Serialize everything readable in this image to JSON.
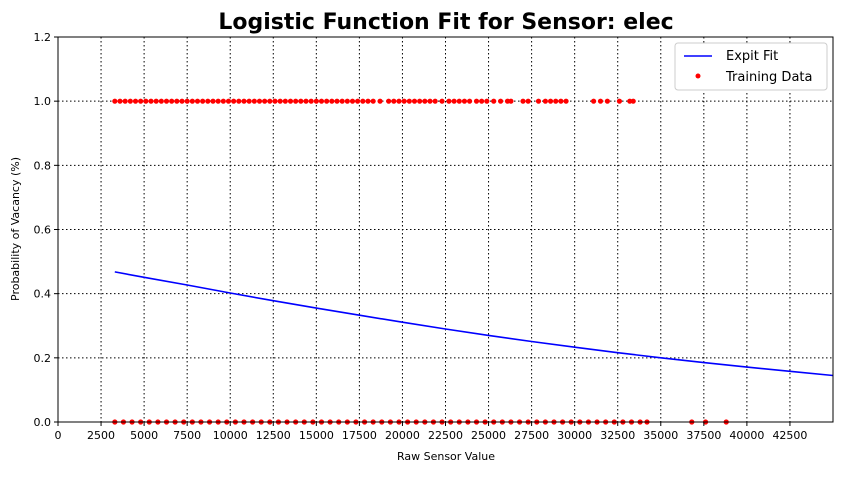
{
  "chart_data": {
    "type": "scatter",
    "title": "Logistic Function Fit for Sensor: elec",
    "xlabel": "Raw Sensor Value",
    "ylabel": "Probability of Vacancy (%)",
    "xlim": [
      0,
      45000
    ],
    "ylim": [
      0,
      1.2
    ],
    "xticks": [
      0,
      2500,
      5000,
      7500,
      10000,
      12500,
      15000,
      17500,
      20000,
      22500,
      25000,
      27500,
      30000,
      32500,
      35000,
      37500,
      40000,
      42500
    ],
    "yticks": [
      0.0,
      0.2,
      0.4,
      0.6,
      0.8,
      1.0,
      1.2
    ],
    "grid": true,
    "legend_position": "top-right",
    "series": [
      {
        "name": "Expit Fit",
        "kind": "line",
        "color": "#0000ff",
        "x": [
          3300,
          5000,
          7500,
          10000,
          12500,
          15000,
          17500,
          20000,
          22500,
          25000,
          27500,
          30000,
          32500,
          35000,
          37500,
          40000,
          42500,
          45000
        ],
        "y": [
          0.468,
          0.451,
          0.427,
          0.402,
          0.378,
          0.355,
          0.333,
          0.311,
          0.29,
          0.27,
          0.251,
          0.233,
          0.216,
          0.2,
          0.185,
          0.171,
          0.158,
          0.145
        ]
      },
      {
        "name": "Training Data",
        "kind": "points",
        "color": "#ff0000",
        "vacant_x": [
          3300,
          3600,
          3900,
          4200,
          4500,
          4800,
          5100,
          5400,
          5700,
          6000,
          6300,
          6600,
          6900,
          7200,
          7500,
          7800,
          8100,
          8400,
          8700,
          9000,
          9300,
          9600,
          9900,
          10200,
          10500,
          10800,
          11100,
          11400,
          11700,
          12000,
          12300,
          12600,
          12900,
          13200,
          13500,
          13800,
          14100,
          14400,
          14700,
          15000,
          15300,
          15600,
          15900,
          16200,
          16500,
          16800,
          17100,
          17400,
          17700,
          18000,
          18300,
          18700,
          19200,
          19500,
          19800,
          20100,
          20400,
          20700,
          21000,
          21300,
          21600,
          21900,
          22300,
          22700,
          23000,
          23300,
          23600,
          23900,
          24300,
          24600,
          24900,
          25300,
          25700,
          26100,
          26300,
          27000,
          27300,
          27900,
          28300,
          28600,
          28900,
          29200,
          29500,
          31100,
          31500,
          31900,
          32600,
          33200,
          33400
        ],
        "vacant_y": 1.0,
        "occupied_x": [
          3300,
          3800,
          4300,
          4800,
          5300,
          5800,
          6300,
          6800,
          7300,
          7800,
          8300,
          8800,
          9300,
          9800,
          10300,
          10800,
          11300,
          11800,
          12300,
          12800,
          13300,
          13800,
          14300,
          14800,
          15300,
          15800,
          16300,
          16800,
          17300,
          17800,
          18300,
          18800,
          19300,
          19800,
          20300,
          20800,
          21300,
          21800,
          22300,
          22800,
          23300,
          23800,
          24300,
          24800,
          25300,
          25800,
          26300,
          26800,
          27300,
          27800,
          28300,
          28800,
          29300,
          29800,
          30300,
          30800,
          31300,
          31800,
          32300,
          32800,
          33300,
          33800,
          34200,
          36800,
          37600,
          38800
        ],
        "occupied_y": 0.0
      }
    ]
  }
}
